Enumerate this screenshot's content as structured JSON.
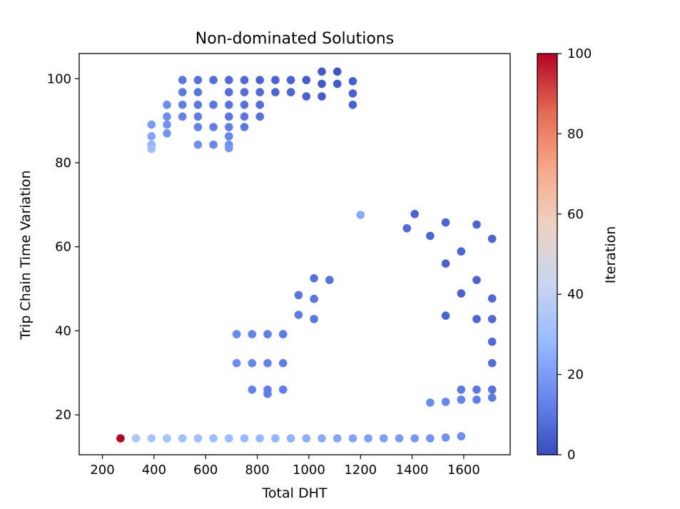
{
  "chart_data": {
    "type": "scatter",
    "title": "Non-dominated Solutions",
    "xlabel": "Total DHT",
    "ylabel": "Trip Chain Time Variation",
    "xlim": [
      110,
      1780
    ],
    "ylim": [
      10.5,
      106
    ],
    "x_ticks": [
      200,
      400,
      600,
      800,
      1000,
      1200,
      1400,
      1600
    ],
    "y_ticks": [
      20,
      40,
      60,
      80,
      100
    ],
    "grid": false,
    "colorbar": {
      "label": "Iteration",
      "range": [
        0,
        100
      ],
      "ticks": [
        0,
        20,
        40,
        60,
        80,
        100
      ],
      "colormap": "coolwarm",
      "stops": [
        "#3b4cc0",
        "#6788ee",
        "#9abbff",
        "#c9d7f0",
        "#edd1c2",
        "#f7a889",
        "#e26952",
        "#b40426"
      ]
    },
    "points": [
      {
        "x": 270,
        "y": 14.4,
        "c": 100
      },
      {
        "x": 330,
        "y": 14.4,
        "c": 34
      },
      {
        "x": 390,
        "y": 14.4,
        "c": 33
      },
      {
        "x": 450,
        "y": 14.4,
        "c": 32
      },
      {
        "x": 510,
        "y": 14.4,
        "c": 31
      },
      {
        "x": 570,
        "y": 14.4,
        "c": 30
      },
      {
        "x": 630,
        "y": 14.4,
        "c": 30
      },
      {
        "x": 690,
        "y": 14.4,
        "c": 29
      },
      {
        "x": 750,
        "y": 14.4,
        "c": 28
      },
      {
        "x": 810,
        "y": 14.4,
        "c": 28
      },
      {
        "x": 870,
        "y": 14.4,
        "c": 27
      },
      {
        "x": 930,
        "y": 14.4,
        "c": 26
      },
      {
        "x": 990,
        "y": 14.4,
        "c": 25
      },
      {
        "x": 1050,
        "y": 14.4,
        "c": 24
      },
      {
        "x": 1110,
        "y": 14.4,
        "c": 23
      },
      {
        "x": 1170,
        "y": 14.4,
        "c": 22
      },
      {
        "x": 1230,
        "y": 14.4,
        "c": 21
      },
      {
        "x": 1290,
        "y": 14.4,
        "c": 21
      },
      {
        "x": 1350,
        "y": 14.4,
        "c": 20
      },
      {
        "x": 1410,
        "y": 14.4,
        "c": 19
      },
      {
        "x": 1470,
        "y": 14.4,
        "c": 18
      },
      {
        "x": 1530,
        "y": 14.6,
        "c": 17
      },
      {
        "x": 1590,
        "y": 14.9,
        "c": 16
      },
      {
        "x": 1470,
        "y": 22.9,
        "c": 15
      },
      {
        "x": 1530,
        "y": 23.1,
        "c": 14
      },
      {
        "x": 1590,
        "y": 23.6,
        "c": 13
      },
      {
        "x": 1650,
        "y": 23.6,
        "c": 12
      },
      {
        "x": 1710,
        "y": 24.1,
        "c": 11
      },
      {
        "x": 1590,
        "y": 26.0,
        "c": 11
      },
      {
        "x": 1650,
        "y": 26.0,
        "c": 10
      },
      {
        "x": 1710,
        "y": 26.0,
        "c": 9
      },
      {
        "x": 1710,
        "y": 32.3,
        "c": 8
      },
      {
        "x": 1710,
        "y": 37.4,
        "c": 7
      },
      {
        "x": 1530,
        "y": 43.6,
        "c": 6
      },
      {
        "x": 1650,
        "y": 42.8,
        "c": 6
      },
      {
        "x": 1710,
        "y": 42.8,
        "c": 7
      },
      {
        "x": 1710,
        "y": 47.7,
        "c": 7
      },
      {
        "x": 1590,
        "y": 48.9,
        "c": 5
      },
      {
        "x": 1650,
        "y": 52.1,
        "c": 6
      },
      {
        "x": 1530,
        "y": 56.0,
        "c": 5
      },
      {
        "x": 1590,
        "y": 58.9,
        "c": 6
      },
      {
        "x": 1710,
        "y": 61.9,
        "c": 6
      },
      {
        "x": 1470,
        "y": 62.6,
        "c": 6
      },
      {
        "x": 1380,
        "y": 64.4,
        "c": 7
      },
      {
        "x": 1650,
        "y": 65.3,
        "c": 6
      },
      {
        "x": 1530,
        "y": 65.8,
        "c": 6
      },
      {
        "x": 1410,
        "y": 67.8,
        "c": 6
      },
      {
        "x": 1200,
        "y": 67.6,
        "c": 24
      },
      {
        "x": 720,
        "y": 39.2,
        "c": 14
      },
      {
        "x": 780,
        "y": 39.2,
        "c": 13
      },
      {
        "x": 840,
        "y": 39.2,
        "c": 12
      },
      {
        "x": 900,
        "y": 39.2,
        "c": 11
      },
      {
        "x": 720,
        "y": 32.3,
        "c": 15
      },
      {
        "x": 780,
        "y": 32.3,
        "c": 14
      },
      {
        "x": 840,
        "y": 32.3,
        "c": 13
      },
      {
        "x": 900,
        "y": 32.3,
        "c": 12
      },
      {
        "x": 780,
        "y": 26.0,
        "c": 13
      },
      {
        "x": 840,
        "y": 26.0,
        "c": 12
      },
      {
        "x": 840,
        "y": 25.0,
        "c": 12
      },
      {
        "x": 900,
        "y": 26.0,
        "c": 12
      },
      {
        "x": 960,
        "y": 48.5,
        "c": 10
      },
      {
        "x": 960,
        "y": 43.8,
        "c": 11
      },
      {
        "x": 1020,
        "y": 52.5,
        "c": 9
      },
      {
        "x": 1020,
        "y": 47.6,
        "c": 10
      },
      {
        "x": 1020,
        "y": 42.8,
        "c": 10
      },
      {
        "x": 1080,
        "y": 52.1,
        "c": 9
      },
      {
        "x": 390,
        "y": 89.1,
        "c": 20
      },
      {
        "x": 390,
        "y": 86.3,
        "c": 22
      },
      {
        "x": 390,
        "y": 84.3,
        "c": 26
      },
      {
        "x": 390,
        "y": 83.3,
        "c": 30
      },
      {
        "x": 450,
        "y": 93.8,
        "c": 15
      },
      {
        "x": 450,
        "y": 91.0,
        "c": 16
      },
      {
        "x": 450,
        "y": 89.1,
        "c": 17
      },
      {
        "x": 450,
        "y": 87.0,
        "c": 18
      },
      {
        "x": 510,
        "y": 99.7,
        "c": 10
      },
      {
        "x": 510,
        "y": 96.8,
        "c": 11
      },
      {
        "x": 510,
        "y": 93.8,
        "c": 12
      },
      {
        "x": 510,
        "y": 91.0,
        "c": 13
      },
      {
        "x": 570,
        "y": 99.7,
        "c": 9
      },
      {
        "x": 570,
        "y": 96.8,
        "c": 10
      },
      {
        "x": 570,
        "y": 93.8,
        "c": 11
      },
      {
        "x": 570,
        "y": 91.0,
        "c": 12
      },
      {
        "x": 570,
        "y": 88.5,
        "c": 13
      },
      {
        "x": 570,
        "y": 84.3,
        "c": 16
      },
      {
        "x": 630,
        "y": 99.7,
        "c": 8
      },
      {
        "x": 630,
        "y": 93.8,
        "c": 10
      },
      {
        "x": 630,
        "y": 88.5,
        "c": 12
      },
      {
        "x": 630,
        "y": 84.3,
        "c": 14
      },
      {
        "x": 690,
        "y": 99.7,
        "c": 7
      },
      {
        "x": 690,
        "y": 96.8,
        "c": 8
      },
      {
        "x": 690,
        "y": 93.8,
        "c": 9
      },
      {
        "x": 690,
        "y": 91.0,
        "c": 10
      },
      {
        "x": 690,
        "y": 88.5,
        "c": 12
      },
      {
        "x": 690,
        "y": 86.3,
        "c": 14
      },
      {
        "x": 690,
        "y": 84.3,
        "c": 16
      },
      {
        "x": 690,
        "y": 83.5,
        "c": 18
      },
      {
        "x": 750,
        "y": 99.7,
        "c": 7
      },
      {
        "x": 750,
        "y": 96.8,
        "c": 8
      },
      {
        "x": 750,
        "y": 93.8,
        "c": 9
      },
      {
        "x": 750,
        "y": 91.0,
        "c": 10
      },
      {
        "x": 750,
        "y": 88.5,
        "c": 11
      },
      {
        "x": 810,
        "y": 99.7,
        "c": 6
      },
      {
        "x": 810,
        "y": 96.8,
        "c": 7
      },
      {
        "x": 810,
        "y": 93.8,
        "c": 8
      },
      {
        "x": 810,
        "y": 91.0,
        "c": 9
      },
      {
        "x": 870,
        "y": 99.7,
        "c": 5
      },
      {
        "x": 870,
        "y": 96.8,
        "c": 6
      },
      {
        "x": 930,
        "y": 99.7,
        "c": 5
      },
      {
        "x": 930,
        "y": 96.8,
        "c": 6
      },
      {
        "x": 990,
        "y": 99.7,
        "c": 4
      },
      {
        "x": 990,
        "y": 95.8,
        "c": 5
      },
      {
        "x": 1050,
        "y": 101.7,
        "c": 3
      },
      {
        "x": 1050,
        "y": 98.8,
        "c": 3
      },
      {
        "x": 1050,
        "y": 95.8,
        "c": 4
      },
      {
        "x": 1110,
        "y": 101.7,
        "c": 2
      },
      {
        "x": 1110,
        "y": 98.8,
        "c": 3
      },
      {
        "x": 1170,
        "y": 99.4,
        "c": 4
      },
      {
        "x": 1170,
        "y": 96.5,
        "c": 5
      },
      {
        "x": 1170,
        "y": 93.8,
        "c": 5
      }
    ]
  }
}
